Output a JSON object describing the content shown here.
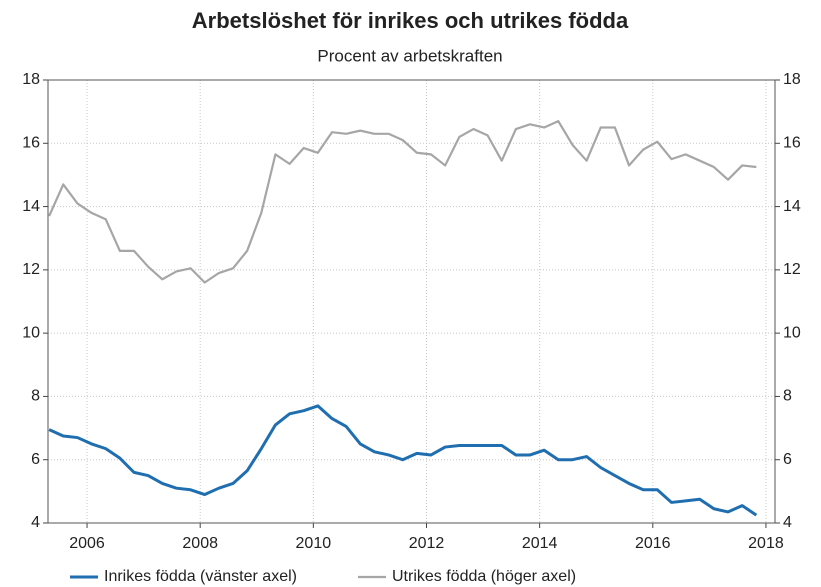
{
  "chart_data": {
    "type": "line",
    "title": "Arbetslöshet för inrikes och utrikes födda",
    "subtitle": "Procent av arbetskraften",
    "x": [
      2005.33,
      2005.58,
      2005.83,
      2006.08,
      2006.33,
      2006.58,
      2006.83,
      2007.08,
      2007.33,
      2007.58,
      2007.83,
      2008.08,
      2008.33,
      2008.58,
      2008.83,
      2009.08,
      2009.33,
      2009.58,
      2009.83,
      2010.08,
      2010.33,
      2010.58,
      2010.83,
      2011.08,
      2011.33,
      2011.58,
      2011.83,
      2012.08,
      2012.33,
      2012.58,
      2012.83,
      2013.08,
      2013.33,
      2013.58,
      2013.83,
      2014.08,
      2014.33,
      2014.58,
      2014.83,
      2015.08,
      2015.33,
      2015.58,
      2015.83,
      2016.08,
      2016.33,
      2016.58,
      2016.83,
      2017.08,
      2017.33,
      2017.58,
      2017.83
    ],
    "series": [
      {
        "name": "Inrikes födda (vänster axel)",
        "color": "#1f6eb0",
        "axis": "y",
        "values": [
          6.95,
          6.75,
          6.7,
          6.5,
          6.35,
          6.05,
          5.6,
          5.5,
          5.25,
          5.1,
          5.05,
          4.9,
          5.1,
          5.25,
          5.65,
          6.35,
          7.1,
          7.45,
          7.55,
          7.7,
          7.3,
          7.05,
          6.5,
          6.25,
          6.15,
          6.0,
          6.2,
          6.15,
          6.4,
          6.45,
          6.45,
          6.45,
          6.45,
          6.15,
          6.15,
          6.3,
          6.0,
          6.0,
          6.1,
          5.75,
          5.5,
          5.25,
          5.05,
          5.05,
          4.65,
          4.7,
          4.75,
          4.45,
          4.35,
          4.55,
          4.25
        ]
      },
      {
        "name": "Utrikes födda (höger axel)",
        "color": "#a6a6a6",
        "axis": "y2",
        "values": [
          13.7,
          14.7,
          14.1,
          13.8,
          13.6,
          12.6,
          12.6,
          12.1,
          11.7,
          11.95,
          12.05,
          11.6,
          11.9,
          12.05,
          12.6,
          13.8,
          15.65,
          15.35,
          15.85,
          15.7,
          16.35,
          16.3,
          16.4,
          16.3,
          16.3,
          16.1,
          15.7,
          15.65,
          15.3,
          16.2,
          16.45,
          16.25,
          15.45,
          16.45,
          16.6,
          16.5,
          16.7,
          15.95,
          15.45,
          16.5,
          16.5,
          15.3,
          15.8,
          16.05,
          15.5,
          15.65,
          15.45,
          15.25,
          14.85,
          15.3,
          15.25
        ]
      }
    ],
    "xlim": [
      2005.31,
      2018.16
    ],
    "xticks": [
      2006,
      2008,
      2010,
      2012,
      2014,
      2016,
      2018
    ],
    "ylim": [
      4,
      18
    ],
    "yticks": [
      4,
      6,
      8,
      10,
      12,
      14,
      16,
      18
    ],
    "y2lim": [
      4,
      18
    ],
    "y2ticks": [
      4,
      6,
      8,
      10,
      12,
      14,
      16,
      18
    ],
    "grid": true,
    "legend": "bottom"
  }
}
